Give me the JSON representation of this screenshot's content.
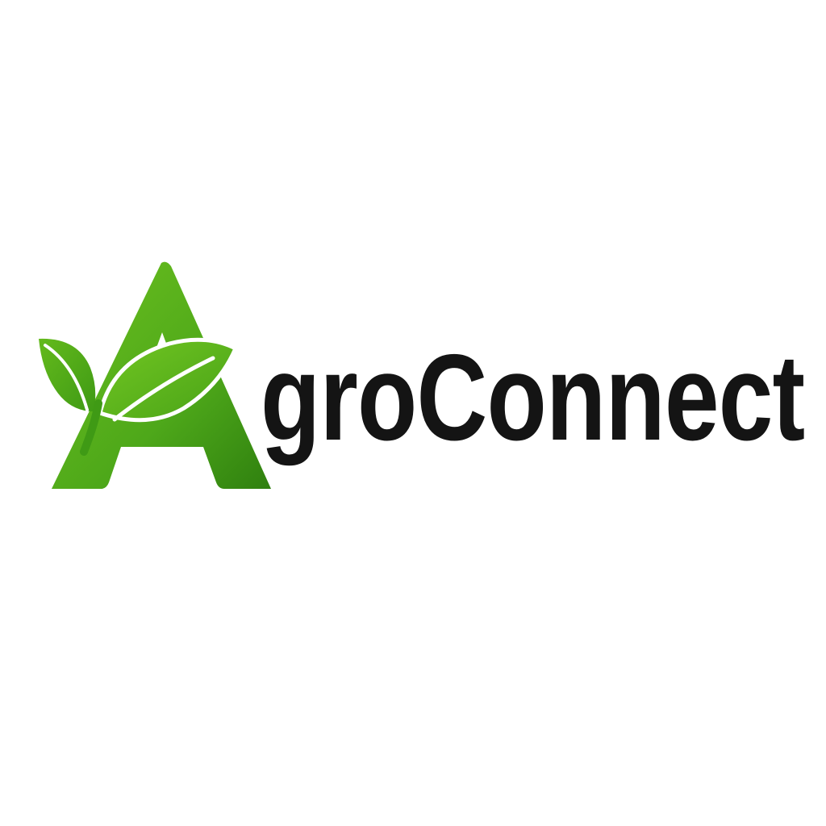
{
  "logo": {
    "brand_name": "AgroConnect",
    "wordmark_text": "groConnect",
    "mark_letter": "A",
    "mark_icon": "leaf-sprout-icon",
    "colors": {
      "green_light": "#6bbf1f",
      "green_mid": "#4ea81a",
      "green_dark": "#2e7d10",
      "text": "#141414",
      "background": "#ffffff"
    }
  }
}
